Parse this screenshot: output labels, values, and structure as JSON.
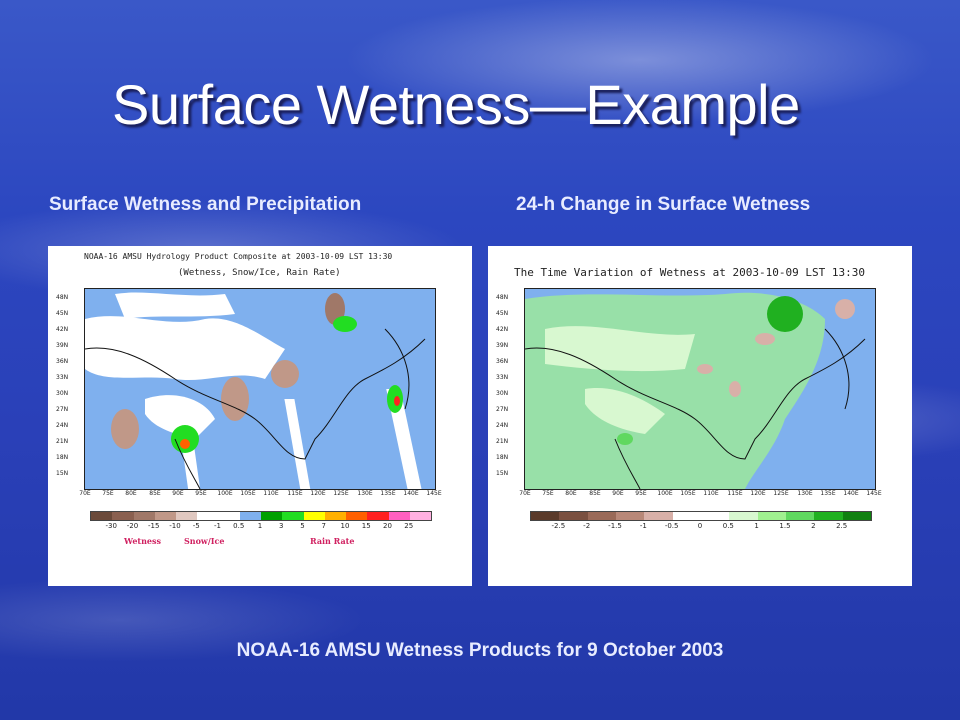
{
  "slide": {
    "title": "Surface Wetness—Example",
    "left_heading": "Surface Wetness and Precipitation",
    "right_heading": "24-h Change in Surface Wetness",
    "caption": "NOAA-16 AMSU Wetness Products for 9 October 2003"
  },
  "left_figure": {
    "title_line1": "NOAA-16 AMSU Hydrology Product Composite at 2003-10-09 LST 13:30",
    "title_line2": "(Wetness, Snow/Ice,  Rain Rate)",
    "lat_ticks": [
      "48N",
      "45N",
      "42N",
      "39N",
      "36N",
      "33N",
      "30N",
      "27N",
      "24N",
      "21N",
      "18N",
      "15N"
    ],
    "lon_ticks": [
      "70E",
      "75E",
      "80E",
      "85E",
      "90E",
      "95E",
      "100E",
      "105E",
      "110E",
      "115E",
      "120E",
      "125E",
      "130E",
      "135E",
      "140E",
      "145E"
    ],
    "colorbar_labels": [
      "-30",
      "-20",
      "-15",
      "-10",
      "-5",
      "-1",
      "0.5",
      "1",
      "3",
      "5",
      "7",
      "10",
      "15",
      "20",
      "25"
    ],
    "colorbar_colors": [
      "#6b4a3a",
      "#8a6050",
      "#a07868",
      "#c09888",
      "#e0c8c0",
      "#ffffff",
      "#ffffff",
      "#7fb0ee",
      "#00a000",
      "#22dd22",
      "#ffff00",
      "#ffb000",
      "#ff6000",
      "#ff2020",
      "#ff60c0",
      "#ffb0e0"
    ],
    "legend_wetness": "Wetness",
    "legend_snow": "Snow/Ice",
    "legend_rain": "Rain Rate"
  },
  "right_figure": {
    "title": "The Time Variation of Wetness at 2003-10-09 LST 13:30",
    "lat_ticks": [
      "48N",
      "45N",
      "42N",
      "39N",
      "36N",
      "33N",
      "30N",
      "27N",
      "24N",
      "21N",
      "18N",
      "15N"
    ],
    "lon_ticks": [
      "70E",
      "75E",
      "80E",
      "85E",
      "90E",
      "95E",
      "100E",
      "105E",
      "110E",
      "115E",
      "120E",
      "125E",
      "130E",
      "135E",
      "140E",
      "145E"
    ],
    "colorbar_labels": [
      "-2.5",
      "-2",
      "-1.5",
      "-1",
      "-0.5",
      "0",
      "0.5",
      "1",
      "1.5",
      "2",
      "2.5"
    ],
    "colorbar_colors": [
      "#5a3a2a",
      "#7a5040",
      "#9a6a58",
      "#b88878",
      "#d8b0a8",
      "#ffffff",
      "#ffffff",
      "#d8f8d0",
      "#a0f090",
      "#60d860",
      "#20b020",
      "#108010"
    ]
  }
}
